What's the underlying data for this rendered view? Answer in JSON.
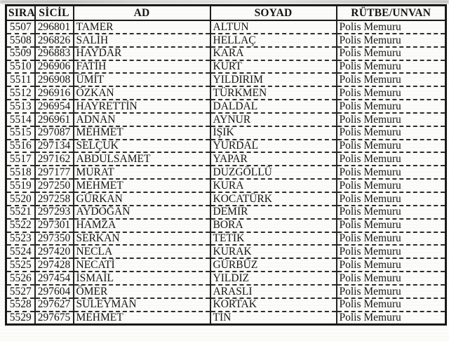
{
  "table": {
    "headers": [
      "SIRA",
      "SİCİL",
      "AD",
      "SOYAD",
      "RÜTBE/UNVAN"
    ],
    "column_keys": [
      "sira",
      "sicil",
      "ad",
      "soyad",
      "rutbe"
    ],
    "rows": [
      {
        "sira": "5507",
        "sicil": "296801",
        "ad": "TAMER",
        "soyad": "ALTUN",
        "rutbe": "Polis Memuru"
      },
      {
        "sira": "5508",
        "sicil": "296826",
        "ad": "SALİH",
        "soyad": "HELLAÇ",
        "rutbe": "Polis Memuru"
      },
      {
        "sira": "5509",
        "sicil": "296883",
        "ad": "HAYDAR",
        "soyad": "KARA",
        "rutbe": "Polis Memuru"
      },
      {
        "sira": "5510",
        "sicil": "296906",
        "ad": "FATİH",
        "soyad": "KURT",
        "rutbe": "Polis Memuru"
      },
      {
        "sira": "5511",
        "sicil": "296908",
        "ad": "ÜMİT",
        "soyad": "YILDIRIM",
        "rutbe": "Polis Memuru"
      },
      {
        "sira": "5512",
        "sicil": "296916",
        "ad": "ÖZKAN",
        "soyad": "TÜRKMEN",
        "rutbe": "Polis Memuru"
      },
      {
        "sira": "5513",
        "sicil": "296954",
        "ad": "HAYRETTİN",
        "soyad": "DALDAL",
        "rutbe": "Polis Memuru"
      },
      {
        "sira": "5514",
        "sicil": "296961",
        "ad": "ADNAN",
        "soyad": "AYNUR",
        "rutbe": "Polis Memuru"
      },
      {
        "sira": "5515",
        "sicil": "297087",
        "ad": "MEHMET",
        "soyad": "IŞIK",
        "rutbe": "Polis Memuru"
      },
      {
        "sira": "5516",
        "sicil": "297134",
        "ad": "SELÇUK",
        "soyad": "YURDAL",
        "rutbe": "Polis Memuru"
      },
      {
        "sira": "5517",
        "sicil": "297162",
        "ad": "ABDULSAMET",
        "soyad": "YAPAR",
        "rutbe": "Polis Memuru"
      },
      {
        "sira": "5518",
        "sicil": "297177",
        "ad": "MURAT",
        "soyad": "DUZGÖLLÜ",
        "rutbe": "Polis Memuru"
      },
      {
        "sira": "5519",
        "sicil": "297250",
        "ad": "MEHMET",
        "soyad": "KURA",
        "rutbe": "Polis Memuru"
      },
      {
        "sira": "5520",
        "sicil": "297258",
        "ad": "GÜRKAN",
        "soyad": "KOCATÜRK",
        "rutbe": "Polis Memuru"
      },
      {
        "sira": "5521",
        "sicil": "297293",
        "ad": "AYDOĞAN",
        "soyad": "DEMİR",
        "rutbe": "Polis Memuru"
      },
      {
        "sira": "5522",
        "sicil": "297301",
        "ad": "HAMZA",
        "soyad": "BORA",
        "rutbe": "Polis Memuru"
      },
      {
        "sira": "5523",
        "sicil": "297350",
        "ad": "SERKAN",
        "soyad": "TETİK",
        "rutbe": "Polis Memuru"
      },
      {
        "sira": "5524",
        "sicil": "297420",
        "ad": "NECLA",
        "soyad": "KURAK",
        "rutbe": "Polis Memuru"
      },
      {
        "sira": "5525",
        "sicil": "297428",
        "ad": "NECATİ",
        "soyad": "GÜRBÜZ",
        "rutbe": "Polis Memuru"
      },
      {
        "sira": "5526",
        "sicil": "297454",
        "ad": "İSMAİL",
        "soyad": "YILDIZ",
        "rutbe": "Polis Memuru"
      },
      {
        "sira": "5527",
        "sicil": "297604",
        "ad": "ÖMER",
        "soyad": "ARASLI",
        "rutbe": "Polis Memuru"
      },
      {
        "sira": "5528",
        "sicil": "297627",
        "ad": "SÜLEYMAN",
        "soyad": "KORTAK",
        "rutbe": "Polis Memuru"
      },
      {
        "sira": "5529",
        "sicil": "297675",
        "ad": "MEHMET",
        "soyad": "TİN",
        "rutbe": "Polis Memuru"
      }
    ],
    "colors": {
      "text": "#151515",
      "border": "#1c1c1c",
      "background": "#fcfcfa"
    }
  }
}
